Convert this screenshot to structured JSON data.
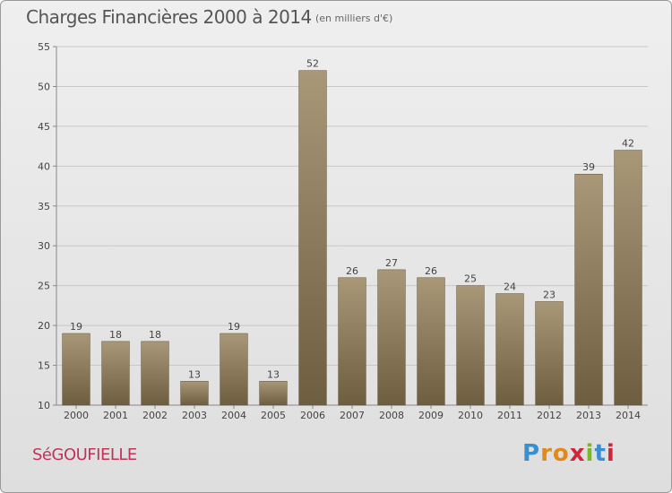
{
  "header": {
    "title": "Charges Financières 2000 à 2014",
    "subtitle": "(en milliers d'€)"
  },
  "footer": {
    "commune": "SéGOUFIELLE",
    "logo_letters": [
      "P",
      "r",
      "o",
      "x",
      "i",
      "t",
      "i"
    ],
    "logo_colors": [
      "#3a8fd0",
      "#e08a1e",
      "#e08a1e",
      "#d0263a",
      "#7ab828",
      "#3a8fd0",
      "#d0263a"
    ]
  },
  "colors": {
    "bar_light": "#a89878",
    "bar_dark": "#6e5e40",
    "grid": "#c8c8c8",
    "axis": "#888888"
  },
  "chart_data": {
    "type": "bar",
    "title": "Charges Financières 2000 à 2014",
    "subtitle": "(en milliers d'€)",
    "xlabel": "",
    "ylabel": "",
    "categories": [
      "2000",
      "2001",
      "2002",
      "2003",
      "2004",
      "2005",
      "2006",
      "2007",
      "2008",
      "2009",
      "2010",
      "2011",
      "2012",
      "2013",
      "2014"
    ],
    "values": [
      19,
      18,
      18,
      13,
      19,
      13,
      52,
      26,
      27,
      26,
      25,
      24,
      23,
      39,
      42
    ],
    "ylim": [
      10,
      55
    ],
    "yticks": [
      10,
      15,
      20,
      25,
      30,
      35,
      40,
      45,
      50,
      55
    ],
    "grid": true,
    "legend": "none"
  }
}
